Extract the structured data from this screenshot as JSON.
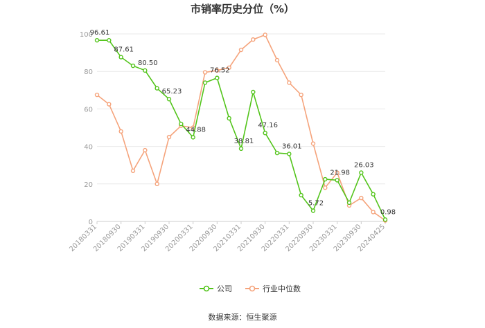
{
  "chart_data": {
    "type": "line",
    "title": "市销率历史分位（%）",
    "xlabel": "",
    "ylabel": "",
    "ylim": [
      0,
      100
    ],
    "yticks": [
      0,
      20,
      40,
      60,
      80,
      100
    ],
    "x": [
      "20180331",
      "20180630",
      "20180930",
      "20181231",
      "20190331",
      "20190630",
      "20190930",
      "20191231",
      "20200331",
      "20200630",
      "20200930",
      "20201231",
      "20210331",
      "20210630",
      "20210930",
      "20211231",
      "20220331",
      "20220630",
      "20220930",
      "20221231",
      "20230331",
      "20230630",
      "20230930",
      "20231231",
      "20240425"
    ],
    "xtick_labels": [
      "20180331",
      "20180930",
      "20190331",
      "20190930",
      "20200331",
      "20200930",
      "20210331",
      "20210930",
      "20220331",
      "20220930",
      "20230331",
      "20230930",
      "20240425"
    ],
    "series": [
      {
        "name": "公司",
        "color": "#52c41a",
        "values": [
          96.61,
          96.6,
          87.61,
          83.0,
          80.5,
          71.0,
          65.23,
          52.0,
          44.88,
          74.0,
          76.52,
          55.0,
          38.81,
          69.0,
          47.16,
          36.5,
          36.01,
          14.0,
          5.72,
          22.5,
          21.98,
          10.0,
          26.03,
          14.5,
          0.98
        ],
        "labels": {
          "0": "96.61",
          "2": "87.61",
          "4": "80.50",
          "6": "65.23",
          "8": "44.88",
          "10": "76.52",
          "12": "38.81",
          "14": "47.16",
          "16": "36.01",
          "18": "5.72",
          "20": "21.98",
          "22": "26.03",
          "24": "0.98"
        }
      },
      {
        "name": "行业中位数",
        "color": "#f5a37b",
        "values": [
          67.5,
          62.5,
          48.0,
          27.0,
          38.0,
          20.0,
          45.0,
          51.0,
          50.0,
          79.5,
          80.5,
          82.0,
          91.5,
          97.0,
          99.5,
          86.0,
          74.0,
          67.5,
          41.5,
          18.0,
          26.0,
          8.5,
          12.5,
          5.0,
          0.5
        ],
        "labels": {}
      }
    ],
    "legend_position": "bottom",
    "grid": true
  },
  "source_text": "数据来源：恒生聚源"
}
